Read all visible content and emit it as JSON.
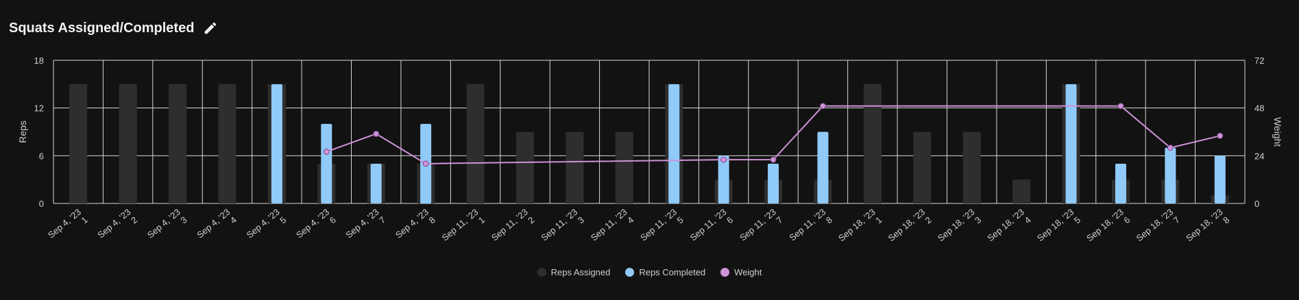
{
  "header": {
    "title": "Squats Assigned/Completed",
    "edit_icon": "pencil-icon"
  },
  "colors": {
    "background": "#121212",
    "grid": "#d9d9d9",
    "assigned": "#2e2e2e",
    "completed": "#90caf9",
    "weight": "#ce93d8",
    "text": "#d0d0d0"
  },
  "chart_data": {
    "type": "bar",
    "title": "Squats Assigned/Completed",
    "categories": [
      [
        "Sep 4, '23",
        "1"
      ],
      [
        "Sep 4, '23",
        "2"
      ],
      [
        "Sep 4, '23",
        "3"
      ],
      [
        "Sep 4, '23",
        "4"
      ],
      [
        "Sep 4, '23",
        "5"
      ],
      [
        "Sep 4, '23",
        "6"
      ],
      [
        "Sep 4, '23",
        "7"
      ],
      [
        "Sep 4, '23",
        "8"
      ],
      [
        "Sep 11, '23",
        "1"
      ],
      [
        "Sep 11, '23",
        "2"
      ],
      [
        "Sep 11, '23",
        "3"
      ],
      [
        "Sep 11, '23",
        "4"
      ],
      [
        "Sep 11, '23",
        "5"
      ],
      [
        "Sep 11, '23",
        "6"
      ],
      [
        "Sep 11, '23",
        "7"
      ],
      [
        "Sep 11, '23",
        "8"
      ],
      [
        "Sep 18, '23",
        "1"
      ],
      [
        "Sep 18, '23",
        "2"
      ],
      [
        "Sep 18, '23",
        "3"
      ],
      [
        "Sep 18, '23",
        "4"
      ],
      [
        "Sep 18, '23",
        "5"
      ],
      [
        "Sep 18, '23",
        "6"
      ],
      [
        "Sep 18, '23",
        "7"
      ],
      [
        "Sep 18, '23",
        "8"
      ]
    ],
    "series": [
      {
        "name": "Reps Assigned",
        "axis": "left",
        "type": "bar",
        "values": [
          15,
          15,
          15,
          15,
          15,
          5,
          5,
          5,
          15,
          9,
          9,
          9,
          15,
          3,
          3,
          3,
          15,
          9,
          9,
          3,
          15,
          3,
          3,
          1
        ]
      },
      {
        "name": "Reps Completed",
        "axis": "left",
        "type": "bar",
        "values": [
          0,
          0,
          0,
          0,
          15,
          10,
          5,
          10,
          0,
          0,
          0,
          0,
          15,
          6,
          5,
          9,
          0,
          0,
          0,
          0,
          15,
          5,
          7,
          6
        ]
      },
      {
        "name": "Weight",
        "axis": "right",
        "type": "line",
        "values": [
          null,
          null,
          null,
          null,
          null,
          26,
          35,
          20,
          null,
          null,
          null,
          null,
          null,
          22,
          22,
          49,
          null,
          null,
          null,
          null,
          null,
          49,
          28,
          34
        ]
      }
    ],
    "ylabel": "Reps",
    "y2label": "Weight",
    "ylim": [
      0,
      18
    ],
    "y2lim": [
      0,
      72
    ],
    "yticks": [
      "0",
      "6",
      "12",
      "18"
    ],
    "y2ticks": [
      "0",
      "24",
      "48",
      "72"
    ],
    "legend_position": "bottom-center"
  }
}
